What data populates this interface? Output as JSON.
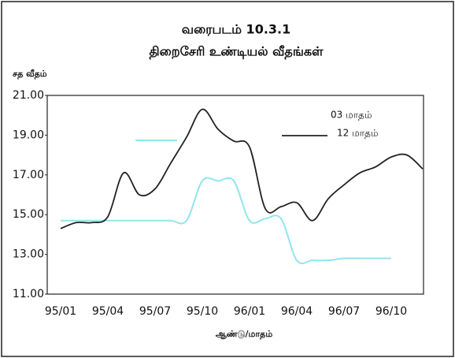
{
  "chart_data": {
    "type": "line",
    "title": "வரைபடம் 10.3.1",
    "subtitle": "திறைசேரி உண்டியல் வீதங்கள்",
    "y_label": "சத வீதம்",
    "x_label": "ஆண்டு/மாதம்",
    "categories": [
      "95/01",
      null,
      null,
      "95/04",
      null,
      null,
      "95/07",
      null,
      null,
      "95/10",
      null,
      null,
      "96/01",
      null,
      null,
      "96/04",
      null,
      null,
      "96/07",
      null,
      null,
      "96/10",
      null,
      null
    ],
    "series": [
      {
        "name": "03 மாதம்",
        "color": "#8fe6ee",
        "values": [
          14.7,
          14.7,
          14.7,
          14.7,
          14.7,
          14.7,
          14.7,
          14.7,
          14.7,
          16.7,
          16.7,
          16.7,
          14.7,
          14.8,
          14.8,
          12.7,
          12.7,
          12.7,
          12.8,
          12.8,
          12.8,
          12.8,
          null,
          null
        ]
      },
      {
        "name": "12 மாதம்",
        "color": "#222222",
        "values": [
          14.3,
          14.6,
          14.6,
          14.9,
          17.1,
          16.0,
          16.3,
          17.6,
          18.9,
          20.3,
          19.3,
          18.7,
          18.4,
          15.3,
          15.4,
          15.6,
          14.7,
          15.8,
          16.5,
          17.1,
          17.4,
          17.9,
          18.0,
          17.3
        ]
      }
    ],
    "ylim": [
      11,
      21
    ],
    "yticks": [
      {
        "value": 11,
        "label": "11.00"
      },
      {
        "value": 13,
        "label": "13.00"
      },
      {
        "value": 15,
        "label": "15.00"
      },
      {
        "value": 17,
        "label": "17.00"
      },
      {
        "value": 19,
        "label": "19.00"
      },
      {
        "value": 21,
        "label": "21.00"
      }
    ],
    "legend": "top-right"
  }
}
